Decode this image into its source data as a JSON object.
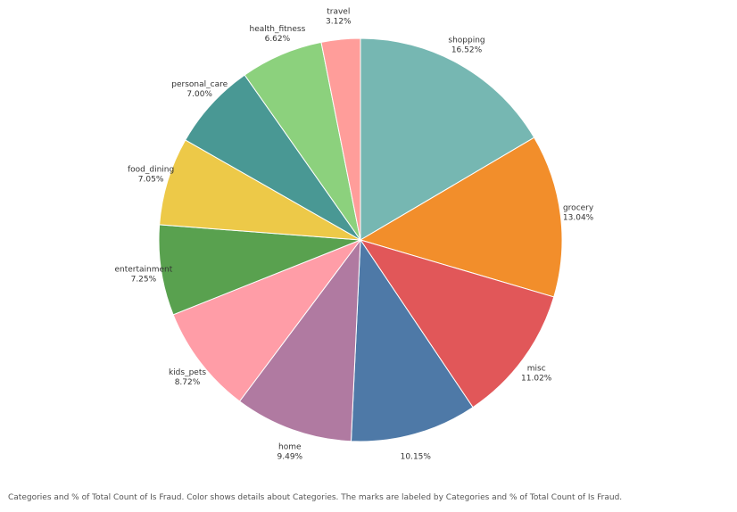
{
  "chart_data": {
    "type": "pie",
    "slices": [
      {
        "category": "shopping",
        "percent": 16.52,
        "label": "16.52%",
        "color": "#76b7b2"
      },
      {
        "category": "grocery",
        "percent": 13.04,
        "label": "13.04%",
        "color": "#f28e2b"
      },
      {
        "category": "misc",
        "percent": 11.02,
        "label": "11.02%",
        "color": "#e15759"
      },
      {
        "category": "",
        "percent": 10.15,
        "label": "10.15%",
        "color": "#4e79a7"
      },
      {
        "category": "home",
        "percent": 9.49,
        "label": "9.49%",
        "color": "#b07aa1"
      },
      {
        "category": "kids_pets",
        "percent": 8.72,
        "label": "8.72%",
        "color": "#ff9da7"
      },
      {
        "category": "entertainment",
        "percent": 7.25,
        "label": "7.25%",
        "color": "#59a14f"
      },
      {
        "category": "food_dining",
        "percent": 7.05,
        "label": "7.05%",
        "color": "#edc948"
      },
      {
        "category": "personal_care",
        "percent": 7.0,
        "label": "7.00%",
        "color": "#499894"
      },
      {
        "category": "health_fitness",
        "percent": 6.62,
        "label": "6.62%",
        "color": "#8cd17d"
      },
      {
        "category": "travel",
        "percent": 3.12,
        "label": "3.12%",
        "color": "#ff9d9a"
      }
    ]
  },
  "caption": "Categories and % of Total Count of Is Fraud.  Color shows details about Categories.  The marks are labeled by Categories and % of Total Count of Is Fraud."
}
